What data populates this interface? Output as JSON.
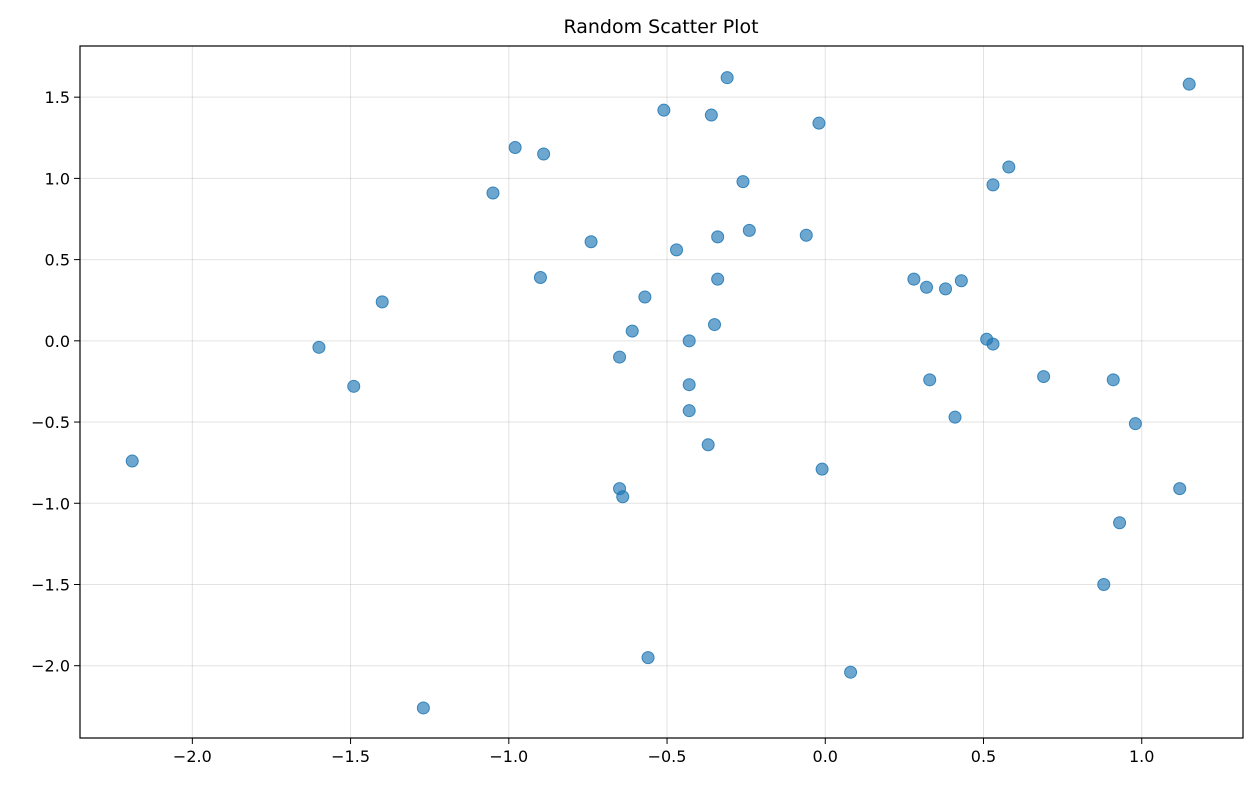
{
  "chart_data": {
    "type": "scatter",
    "title": "Random Scatter Plot",
    "xlabel": "",
    "ylabel": "",
    "xlim": [
      -2.355,
      1.32
    ],
    "ylim": [
      -2.445,
      1.815
    ],
    "grid": true,
    "legend": "none",
    "marker_color": "#1f77b4",
    "marker_alpha": 0.65,
    "xticks": [
      -2.0,
      -1.5,
      -1.0,
      -0.5,
      0.0,
      0.5,
      1.0
    ],
    "xtick_labels": [
      "−2.0",
      "−1.5",
      "−1.0",
      "−0.5",
      "0.0",
      "0.5",
      "1.0"
    ],
    "yticks": [
      1.5,
      1.0,
      0.5,
      0.0,
      -0.5,
      -1.0,
      -1.5,
      -2.0
    ],
    "ytick_labels": [
      "1.5",
      "1.0",
      "0.5",
      "0.0",
      "−0.5",
      "−1.0",
      "−1.5",
      "−2.0"
    ],
    "points": [
      {
        "x": -2.19,
        "y": -0.74
      },
      {
        "x": -1.6,
        "y": -0.04
      },
      {
        "x": -1.49,
        "y": -0.28
      },
      {
        "x": -1.4,
        "y": 0.24
      },
      {
        "x": -1.27,
        "y": -2.26
      },
      {
        "x": -1.05,
        "y": 0.91
      },
      {
        "x": -0.98,
        "y": 1.19
      },
      {
        "x": -0.9,
        "y": 0.39
      },
      {
        "x": -0.89,
        "y": 1.15
      },
      {
        "x": -0.74,
        "y": 0.61
      },
      {
        "x": -0.65,
        "y": -0.1
      },
      {
        "x": -0.65,
        "y": -0.91
      },
      {
        "x": -0.64,
        "y": -0.96
      },
      {
        "x": -0.61,
        "y": 0.06
      },
      {
        "x": -0.57,
        "y": 0.27
      },
      {
        "x": -0.56,
        "y": -1.95
      },
      {
        "x": -0.51,
        "y": 1.42
      },
      {
        "x": -0.47,
        "y": 0.56
      },
      {
        "x": -0.43,
        "y": 0.0
      },
      {
        "x": -0.43,
        "y": -0.27
      },
      {
        "x": -0.43,
        "y": -0.43
      },
      {
        "x": -0.37,
        "y": -0.64
      },
      {
        "x": -0.36,
        "y": 1.39
      },
      {
        "x": -0.35,
        "y": 0.1
      },
      {
        "x": -0.34,
        "y": 0.64
      },
      {
        "x": -0.34,
        "y": 0.38
      },
      {
        "x": -0.31,
        "y": 1.62
      },
      {
        "x": -0.26,
        "y": 0.98
      },
      {
        "x": -0.24,
        "y": 0.68
      },
      {
        "x": -0.06,
        "y": 0.65
      },
      {
        "x": -0.02,
        "y": 1.34
      },
      {
        "x": -0.01,
        "y": -0.79
      },
      {
        "x": 0.08,
        "y": -2.04
      },
      {
        "x": 0.28,
        "y": 0.38
      },
      {
        "x": 0.32,
        "y": 0.33
      },
      {
        "x": 0.33,
        "y": -0.24
      },
      {
        "x": 0.38,
        "y": 0.32
      },
      {
        "x": 0.41,
        "y": -0.47
      },
      {
        "x": 0.43,
        "y": 0.37
      },
      {
        "x": 0.51,
        "y": 0.01
      },
      {
        "x": 0.53,
        "y": 0.96
      },
      {
        "x": 0.53,
        "y": -0.02
      },
      {
        "x": 0.58,
        "y": 1.07
      },
      {
        "x": 0.69,
        "y": -0.22
      },
      {
        "x": 0.88,
        "y": -1.5
      },
      {
        "x": 0.91,
        "y": -0.24
      },
      {
        "x": 0.93,
        "y": -1.12
      },
      {
        "x": 0.98,
        "y": -0.51
      },
      {
        "x": 1.12,
        "y": -0.91
      },
      {
        "x": 1.15,
        "y": 1.58
      }
    ]
  }
}
